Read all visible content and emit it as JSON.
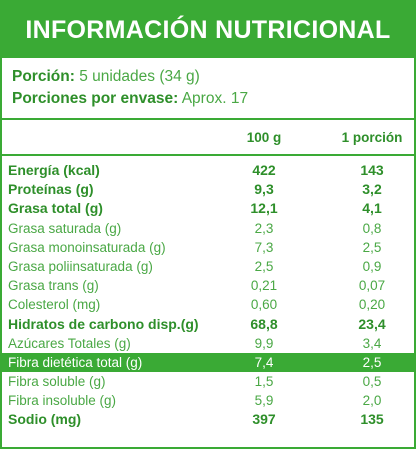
{
  "header": {
    "title": "INFORMACIÓN NUTRICIONAL"
  },
  "serving": {
    "portion_label": "Porción:",
    "portion_value": "5 unidades (34 g)",
    "per_package_label": "Porciones por envase:",
    "per_package_value": "Aprox. 17"
  },
  "columns": {
    "col1": "100 g",
    "col2": "1 porción"
  },
  "rows": [
    {
      "name": "Energía (kcal)",
      "v1": "422",
      "v2": "143",
      "bold": true
    },
    {
      "name": "Proteínas (g)",
      "v1": "9,3",
      "v2": "3,2",
      "bold": true
    },
    {
      "name": "Grasa total (g)",
      "v1": "12,1",
      "v2": "4,1",
      "bold": true
    },
    {
      "name": "Grasa saturada (g)",
      "v1": "2,3",
      "v2": "0,8"
    },
    {
      "name": "Grasa monoinsaturada (g)",
      "v1": "7,3",
      "v2": "2,5"
    },
    {
      "name": "Grasa poliinsaturada (g)",
      "v1": "2,5",
      "v2": "0,9"
    },
    {
      "name": "Grasa trans (g)",
      "v1": "0,21",
      "v2": "0,07"
    },
    {
      "name": "Colesterol (mg)",
      "v1": "0,60",
      "v2": "0,20"
    },
    {
      "name": "Hidratos de carbono disp.(g)",
      "v1": "68,8",
      "v2": "23,4",
      "bold": true
    },
    {
      "name": "Azúcares Totales (g)",
      "v1": "9,9",
      "v2": "3,4"
    },
    {
      "name": "Fibra dietética total (g)",
      "v1": "7,4",
      "v2": "2,5",
      "highlight": true
    },
    {
      "name": "Fibra soluble (g)",
      "v1": "1,5",
      "v2": "0,5"
    },
    {
      "name": "Fibra insoluble (g)",
      "v1": "5,9",
      "v2": "2,0"
    },
    {
      "name": "Sodio (mg)",
      "v1": "397",
      "v2": "135",
      "bold": true
    }
  ],
  "colors": {
    "accent": "#3aaa35",
    "text": "#4aa845",
    "text_strong": "#2e8f2a"
  }
}
